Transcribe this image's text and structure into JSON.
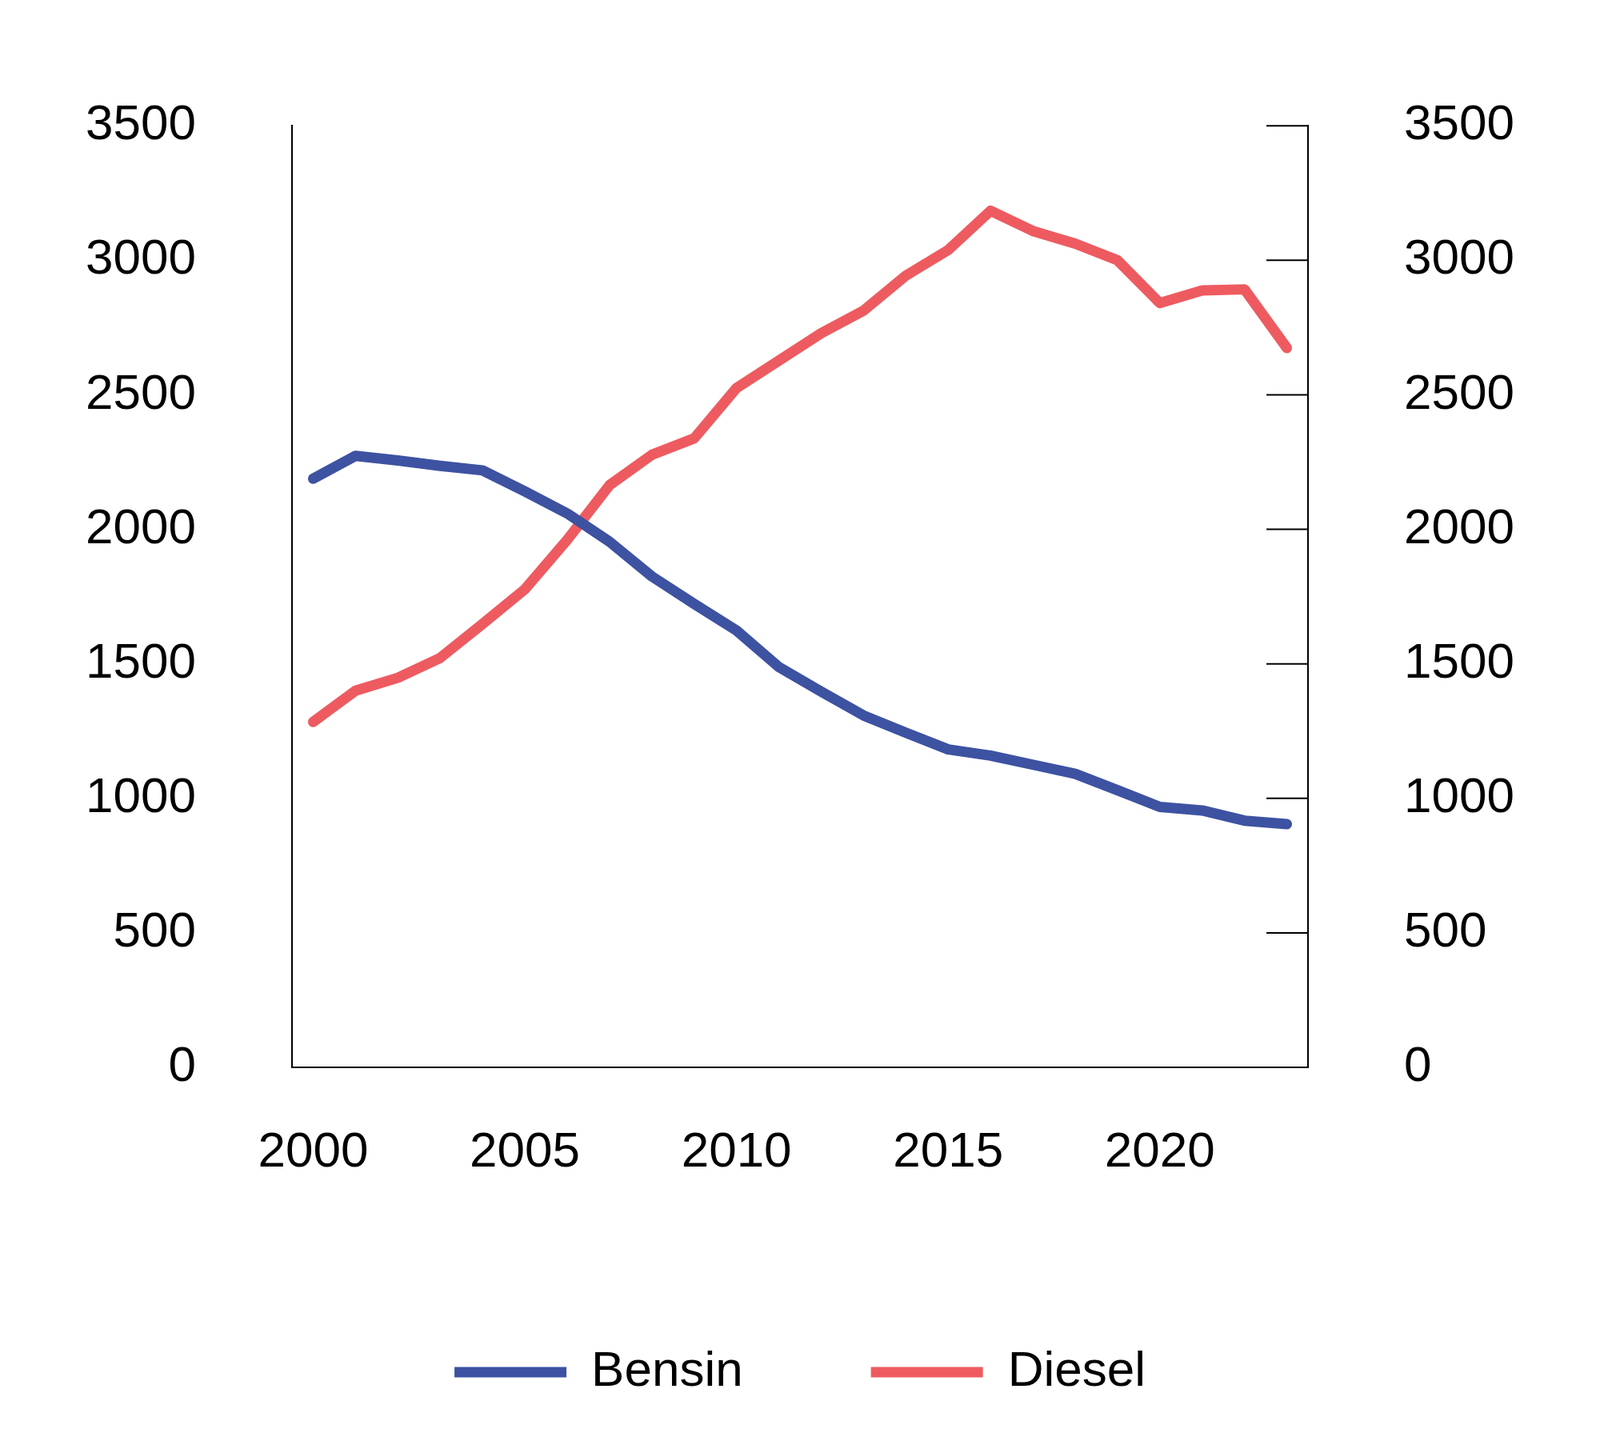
{
  "chart_data": {
    "type": "line",
    "x": [
      2000,
      2001,
      2002,
      2003,
      2004,
      2005,
      2006,
      2007,
      2008,
      2009,
      2010,
      2011,
      2012,
      2013,
      2014,
      2015,
      2016,
      2017,
      2018,
      2019,
      2020,
      2021,
      2022,
      2023
    ],
    "series": [
      {
        "name": "Bensin",
        "color": "#3d52a1",
        "values": [
          2188,
          2273,
          2256,
          2236,
          2219,
          2141,
          2059,
          1954,
          1825,
          1723,
          1624,
          1488,
          1397,
          1308,
          1244,
          1182,
          1159,
          1125,
          1091,
          1030,
          968,
          955,
          917,
          904
        ]
      },
      {
        "name": "Diesel",
        "color": "#ed5b60",
        "values": [
          1284,
          1400,
          1448,
          1522,
          1648,
          1777,
          1961,
          2164,
          2277,
          2338,
          2525,
          2627,
          2729,
          2813,
          2943,
          3038,
          3184,
          3109,
          3062,
          3000,
          2841,
          2888,
          2892,
          2674
        ]
      }
    ],
    "xlim": [
      1999.5,
      2023.5
    ],
    "xticks": [
      2000,
      2005,
      2010,
      2015,
      2020
    ],
    "ylim": [
      0,
      3500
    ],
    "yticks": [
      0,
      500,
      1000,
      1500,
      2000,
      2500,
      3000,
      3500
    ],
    "y2lim": [
      0,
      3500
    ],
    "y2ticks": [
      0,
      500,
      1000,
      1500,
      2000,
      2500,
      3000,
      3500
    ],
    "grid": false,
    "legend": "bottom"
  }
}
